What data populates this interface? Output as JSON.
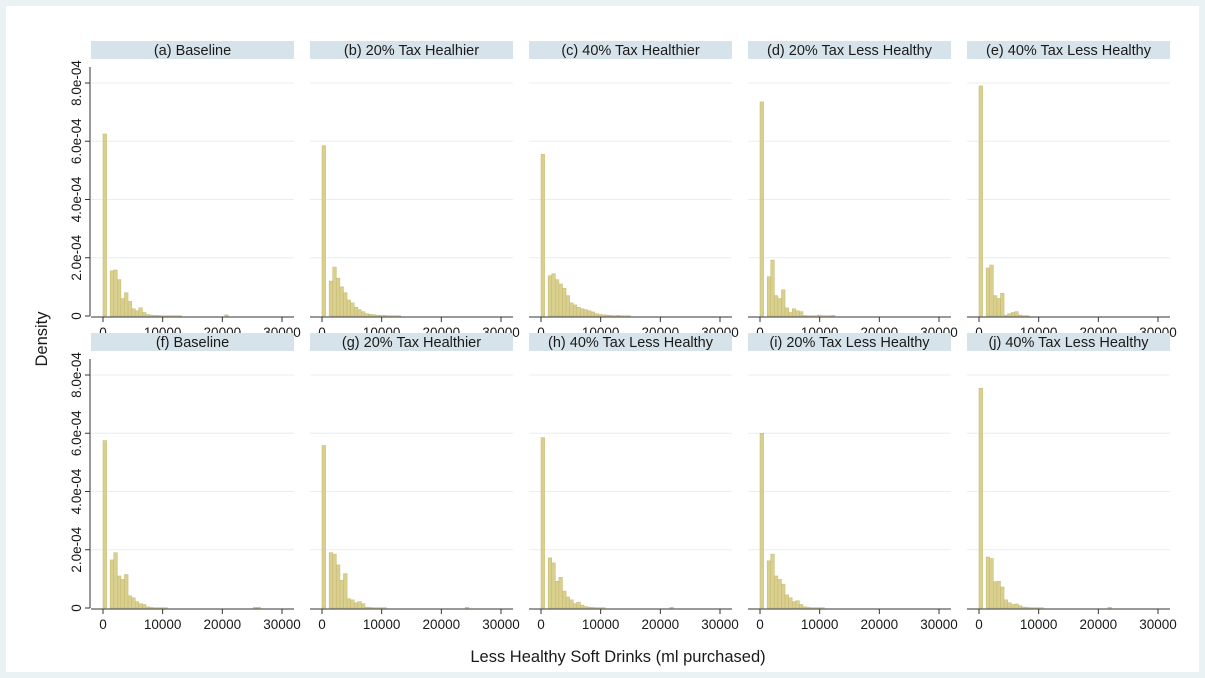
{
  "chart_data": {
    "type": "bar",
    "subtype": "histogram-small-multiples",
    "ylabel": "Density",
    "xlabel": "Less Healthy Soft Drinks (ml purchased)",
    "xlim": [
      0,
      30000
    ],
    "ylim": [
      0,
      0.0008
    ],
    "xticks": [
      0,
      10000,
      20000,
      30000
    ],
    "xtick_labels": [
      "0",
      "10000",
      "20000",
      "30000"
    ],
    "yticks": [
      0,
      0.0002,
      0.0004,
      0.0006,
      0.0008
    ],
    "ytick_labels": [
      "0",
      "2.0e-04",
      "4.0e-04",
      "6.0e-04",
      "8.0e-04"
    ],
    "bin_width": 600,
    "grid": true,
    "legend": "none",
    "colors": {
      "bar_fill": "#d9cf8f",
      "bar_stroke": "#c4b86b",
      "header_fill": "#d7e3ea",
      "gridline": "#e8eef1",
      "page_background": "#eaf2f3"
    },
    "panels": [
      {
        "title": "(a) Baseline",
        "values": [
          0.000625,
          0,
          0.000155,
          0.000158,
          0.000125,
          6e-05,
          8e-05,
          5e-05,
          2.5e-05,
          1.8e-05,
          2.8e-05,
          1.2e-05,
          5e-06,
          3e-06,
          2e-06,
          2e-06,
          1e-06,
          1e-06,
          1e-06,
          1e-06,
          1e-06,
          1e-06,
          0,
          0,
          0,
          0,
          0,
          0,
          0,
          0,
          0,
          0,
          0,
          0,
          4e-06,
          0,
          0,
          0,
          0,
          0,
          0,
          0,
          0,
          0,
          0,
          0,
          0,
          0,
          0,
          0
        ]
      },
      {
        "title": "(b) 20% Tax Healhier",
        "values": [
          0.000585,
          0,
          0.00012,
          0.000168,
          0.00013,
          0.0001,
          8e-05,
          5.5e-05,
          4.5e-05,
          3e-05,
          2.2e-05,
          1.5e-05,
          8e-06,
          6e-06,
          4e-06,
          3e-06,
          2e-06,
          2e-06,
          1e-06,
          1e-06,
          1e-06,
          1e-06,
          0,
          0,
          0,
          0,
          0,
          0,
          0,
          0,
          0,
          0,
          0,
          0,
          0,
          0,
          0,
          0,
          0,
          0,
          0,
          0,
          0,
          0,
          0,
          0,
          0,
          0,
          0,
          0
        ]
      },
      {
        "title": "(c) 40% Tax Healthier",
        "values": [
          0.000555,
          0,
          0.000138,
          0.000145,
          0.000125,
          0.00011,
          9.5e-05,
          7e-05,
          4.5e-05,
          3.8e-05,
          3e-05,
          2.5e-05,
          2.2e-05,
          1.8e-05,
          1.4e-05,
          8e-06,
          5e-06,
          4e-06,
          3e-06,
          2e-06,
          1e-06,
          2e-06,
          1e-06,
          1e-06,
          1e-06,
          0,
          0,
          0,
          0,
          0,
          0,
          0,
          0,
          0,
          0,
          0,
          0,
          0,
          0,
          0,
          0,
          0,
          0,
          0,
          0,
          0,
          0,
          0,
          0,
          0
        ]
      },
      {
        "title": "(d) 20% Tax Less Healthy",
        "values": [
          0.000735,
          0,
          0.000135,
          0.000192,
          7e-05,
          6e-05,
          9e-05,
          2.8e-05,
          1.2e-05,
          2.5e-05,
          1.8e-05,
          1.5e-05,
          2e-06,
          1e-06,
          1e-06,
          1e-06,
          3e-06,
          1e-06,
          1e-06,
          1e-06,
          2e-06,
          0,
          0,
          0,
          0,
          0,
          0,
          0,
          0,
          0,
          0,
          0,
          0,
          0,
          0,
          0,
          0,
          0,
          0,
          0,
          0,
          0,
          0,
          0,
          0,
          0,
          0,
          0,
          0,
          0
        ]
      },
      {
        "title": "(e) 40% Tax Less Healthy",
        "values": [
          0.00079,
          0,
          0.000165,
          0.000175,
          7e-05,
          6e-05,
          7.8e-05,
          2e-06,
          8e-06,
          1.2e-05,
          1.5e-05,
          3e-06,
          1e-06,
          1e-06,
          0,
          0,
          0,
          0,
          0,
          0,
          0,
          0,
          0,
          0,
          0,
          0,
          0,
          0,
          0,
          0,
          0,
          0,
          0,
          0,
          0,
          0,
          0,
          0,
          0,
          0,
          0,
          0,
          0,
          0,
          0,
          0,
          0,
          0,
          0,
          0
        ]
      },
      {
        "title": "(f) Baseline",
        "values": [
          0.000575,
          0,
          0.000165,
          0.00019,
          0.00011,
          9.8e-05,
          0.000115,
          4.2e-05,
          3.5e-05,
          2.2e-05,
          1.5e-05,
          1.2e-05,
          4e-06,
          2e-06,
          1e-06,
          1e-06,
          1e-06,
          1e-06,
          0,
          0,
          0,
          0,
          0,
          0,
          0,
          0,
          0,
          0,
          0,
          0,
          0,
          0,
          0,
          0,
          0,
          0,
          0,
          0,
          0,
          0,
          0,
          0,
          2e-06,
          2e-06,
          0,
          0,
          0,
          0,
          0,
          0
        ]
      },
      {
        "title": "(g) 20% Tax Healthier",
        "values": [
          0.000558,
          0,
          0.00019,
          0.000185,
          0.000148,
          9.5e-05,
          0.000118,
          3.2e-05,
          2.8e-05,
          1.8e-05,
          2.2e-05,
          1.5e-05,
          3e-06,
          2e-06,
          1e-06,
          1e-06,
          1e-06,
          1e-06,
          0,
          0,
          0,
          0,
          0,
          0,
          0,
          0,
          0,
          0,
          0,
          0,
          0,
          0,
          0,
          0,
          0,
          0,
          0,
          0,
          0,
          0,
          2e-06,
          0,
          0,
          0,
          0,
          0,
          0,
          0,
          0,
          0
        ]
      },
      {
        "title": "(h) 40% Tax Less Healthy",
        "values": [
          0.000585,
          0,
          0.000172,
          0.000155,
          9.2e-05,
          0.000105,
          5.8e-05,
          3.8e-05,
          2.8e-05,
          1.5e-05,
          2e-05,
          1e-05,
          5e-06,
          3e-06,
          2e-06,
          1e-06,
          1e-06,
          1e-06,
          0,
          0,
          0,
          0,
          0,
          0,
          0,
          0,
          0,
          0,
          0,
          0,
          0,
          0,
          0,
          0,
          0,
          0,
          2e-06,
          0,
          0,
          0,
          0,
          0,
          0,
          0,
          0,
          0,
          0,
          0,
          0,
          0
        ]
      },
      {
        "title": "(i) 20% Tax Less Healthy",
        "values": [
          0.0006,
          0,
          0.000162,
          0.000185,
          0.00011,
          9.8e-05,
          8.2e-05,
          4.5e-05,
          3.5e-05,
          2.2e-05,
          2.5e-05,
          1.2e-05,
          4e-06,
          2e-06,
          1e-06,
          1e-06,
          1e-06,
          1e-06,
          0,
          0,
          0,
          0,
          0,
          0,
          0,
          0,
          0,
          0,
          0,
          0,
          0,
          0,
          0,
          0,
          0,
          0,
          0,
          0,
          0,
          0,
          0,
          0,
          0,
          0,
          0,
          0,
          0,
          0,
          0,
          0
        ]
      },
      {
        "title": "(j) 40% Tax Less Healthy",
        "values": [
          0.000755,
          0,
          0.000175,
          0.00017,
          9e-05,
          9.2e-05,
          7.2e-05,
          2.8e-05,
          1.8e-05,
          1.2e-05,
          1.4e-05,
          8e-06,
          3e-06,
          2e-06,
          1e-06,
          1e-06,
          1e-06,
          1e-06,
          0,
          0,
          0,
          0,
          0,
          0,
          0,
          0,
          0,
          0,
          0,
          0,
          0,
          0,
          0,
          0,
          0,
          0,
          2e-06,
          0,
          0,
          0,
          0,
          0,
          0,
          0,
          0,
          0,
          0,
          0,
          0,
          0
        ]
      }
    ]
  }
}
